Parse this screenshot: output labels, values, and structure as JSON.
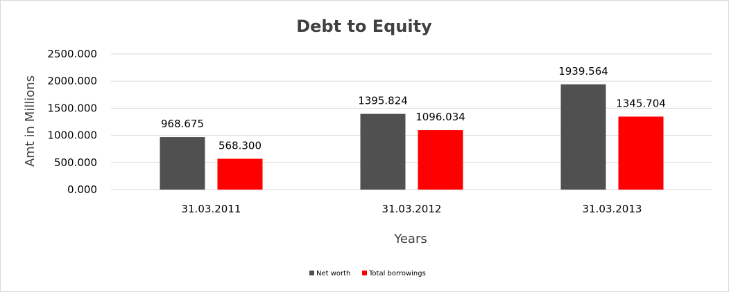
{
  "chart_data": {
    "type": "bar",
    "title": "Debt to Equity",
    "xlabel": "Years",
    "ylabel": "Amt in Millions",
    "categories": [
      "31.03.2011",
      "31.03.2012",
      "31.03.2013"
    ],
    "series": [
      {
        "name": "Net worth",
        "values": [
          968.675,
          1395.824,
          1939.564
        ],
        "color": "#505050"
      },
      {
        "name": "Total borrowings",
        "values": [
          568.3,
          1096.034,
          1345.704
        ],
        "color": "#ff0000"
      }
    ],
    "ylim": [
      0,
      2500
    ],
    "yticks": [
      "0.000",
      "500.000",
      "1000.000",
      "1500.000",
      "2000.000",
      "2500.000"
    ],
    "value_labels": [
      [
        "968.675",
        "1395.824",
        "1939.564"
      ],
      [
        "568.300",
        "1096.034",
        "1345.704"
      ]
    ],
    "grid": true,
    "legend": "bottom"
  }
}
